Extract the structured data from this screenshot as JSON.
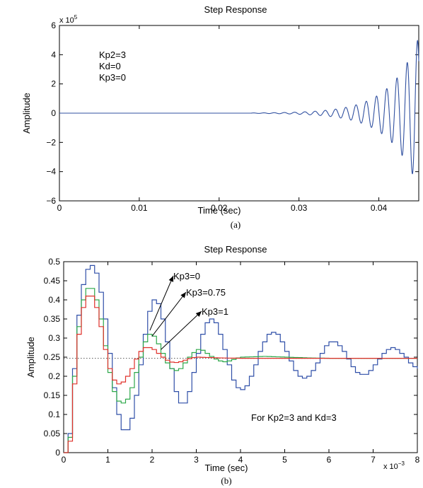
{
  "chart_data": [
    {
      "panel_label": "(a)",
      "type": "line",
      "title": "Step Response",
      "xlabel": "Time (sec)",
      "ylabel": "Amplitude",
      "y_multiplier": {
        "base": "x 10",
        "exponent": "5"
      },
      "xlim": [
        0,
        0.045
      ],
      "ylim": [
        -6,
        6
      ],
      "xticks": [
        0,
        0.01,
        0.02,
        0.03,
        0.04
      ],
      "xtick_labels": [
        "0",
        "0.01",
        "0.02",
        "0.03",
        "0.04"
      ],
      "yticks": [
        -6,
        -4,
        -2,
        0,
        2,
        4,
        6
      ],
      "ytick_labels": [
        "−6",
        "−4",
        "−2",
        "0",
        "2",
        "4",
        "6"
      ],
      "annotation_lines": [
        "Kp2=3",
        "Kd=0",
        "Kp3=0"
      ],
      "series_color": "#3050a0",
      "oscillation": {
        "onset": 0.024,
        "frequency_hz": 780,
        "growth_rate": 282,
        "end_value": 5.2
      },
      "grid": false
    },
    {
      "panel_label": "(b)",
      "type": "line",
      "title": "Step Response",
      "xlabel": "Time (sec)",
      "ylabel": "Amplitude",
      "x_multiplier": {
        "base": "x 10",
        "exponent": "−3"
      },
      "xlim": [
        0,
        8
      ],
      "ylim": [
        0,
        0.5
      ],
      "xticks": [
        0,
        1,
        2,
        3,
        4,
        5,
        6,
        7,
        8
      ],
      "xtick_labels": [
        "0",
        "1",
        "2",
        "3",
        "4",
        "5",
        "6",
        "7",
        "8"
      ],
      "yticks": [
        0,
        0.05,
        0.1,
        0.15,
        0.2,
        0.25,
        0.3,
        0.35,
        0.4,
        0.45,
        0.5
      ],
      "ytick_labels": [
        "0",
        "0.05",
        "0.1",
        "0.15",
        "0.2",
        "0.25",
        "0.3",
        "0.35",
        "0.4",
        "0.45",
        "0.5"
      ],
      "steady_state": 0.247,
      "step_interval": 0.1,
      "series": [
        {
          "annotation": "Kp3=0",
          "color": "#2f4fa8",
          "x_tip": 1.95,
          "y_tip": 0.32,
          "x": [
            0,
            0.1,
            0.2,
            0.3,
            0.4,
            0.5,
            0.6,
            0.7,
            0.8,
            0.9,
            1.0,
            1.1,
            1.2,
            1.3,
            1.4,
            1.5,
            1.6,
            1.7,
            1.8,
            1.9,
            2.0,
            2.1,
            2.2,
            2.3,
            2.4,
            2.5,
            2.6,
            2.7,
            2.8,
            2.9,
            3.0,
            3.1,
            3.2,
            3.3,
            3.4,
            3.5,
            3.6,
            3.7,
            3.8,
            3.9,
            4.0,
            4.1,
            4.2,
            4.3,
            4.4,
            4.5,
            4.6,
            4.7,
            4.8,
            4.9,
            5.0,
            5.1,
            5.2,
            5.3,
            5.4,
            5.5,
            5.6,
            5.7,
            5.8,
            5.9,
            6.0,
            6.1,
            6.2,
            6.3,
            6.4,
            6.5,
            6.6,
            6.7,
            6.8,
            6.9,
            7.0,
            7.1,
            7.2,
            7.3,
            7.4,
            7.5,
            7.6,
            7.7,
            7.8,
            7.9,
            8.0
          ],
          "values": [
            0,
            0.05,
            0.22,
            0.36,
            0.44,
            0.48,
            0.49,
            0.47,
            0.42,
            0.35,
            0.26,
            0.17,
            0.1,
            0.06,
            0.06,
            0.09,
            0.15,
            0.23,
            0.31,
            0.37,
            0.4,
            0.39,
            0.35,
            0.29,
            0.22,
            0.16,
            0.13,
            0.13,
            0.16,
            0.21,
            0.26,
            0.31,
            0.34,
            0.35,
            0.34,
            0.31,
            0.27,
            0.23,
            0.19,
            0.17,
            0.165,
            0.175,
            0.2,
            0.23,
            0.265,
            0.29,
            0.31,
            0.315,
            0.31,
            0.29,
            0.265,
            0.24,
            0.215,
            0.2,
            0.195,
            0.2,
            0.215,
            0.235,
            0.26,
            0.28,
            0.29,
            0.29,
            0.28,
            0.265,
            0.245,
            0.225,
            0.21,
            0.205,
            0.205,
            0.215,
            0.23,
            0.245,
            0.26,
            0.27,
            0.275,
            0.27,
            0.26,
            0.25,
            0.235,
            0.225,
            0.22
          ]
        },
        {
          "annotation": "Kp3=0.75",
          "color": "#2da84a",
          "x_tip": 2.0,
          "y_tip": 0.305,
          "x": [
            0,
            0.1,
            0.2,
            0.3,
            0.4,
            0.5,
            0.6,
            0.7,
            0.8,
            0.9,
            1.0,
            1.1,
            1.2,
            1.3,
            1.4,
            1.5,
            1.6,
            1.7,
            1.8,
            1.9,
            2.0,
            2.1,
            2.2,
            2.3,
            2.4,
            2.5,
            2.6,
            2.7,
            2.8,
            2.9,
            3.0,
            3.1,
            3.2,
            3.3,
            3.4,
            3.5,
            3.6,
            3.7,
            3.8,
            3.9,
            4.0,
            4.5,
            5.0,
            5.5,
            6.0,
            6.5,
            7.0,
            7.5,
            8.0
          ],
          "values": [
            0,
            0.04,
            0.2,
            0.33,
            0.4,
            0.43,
            0.43,
            0.4,
            0.35,
            0.28,
            0.21,
            0.16,
            0.135,
            0.13,
            0.14,
            0.17,
            0.21,
            0.25,
            0.29,
            0.31,
            0.305,
            0.285,
            0.26,
            0.235,
            0.22,
            0.215,
            0.22,
            0.235,
            0.25,
            0.262,
            0.27,
            0.268,
            0.26,
            0.252,
            0.245,
            0.24,
            0.238,
            0.24,
            0.244,
            0.248,
            0.25,
            0.252,
            0.25,
            0.248,
            0.247,
            0.247,
            0.247,
            0.247,
            0.247
          ]
        },
        {
          "annotation": "Kp3=1",
          "color": "#e0302a",
          "x_tip": 2.2,
          "y_tip": 0.27,
          "x": [
            0,
            0.1,
            0.2,
            0.3,
            0.4,
            0.5,
            0.6,
            0.7,
            0.8,
            0.9,
            1.0,
            1.1,
            1.2,
            1.3,
            1.4,
            1.5,
            1.6,
            1.7,
            1.8,
            1.9,
            2.0,
            2.1,
            2.2,
            2.3,
            2.4,
            2.5,
            2.6,
            2.7,
            2.8,
            2.9,
            3.0,
            3.5,
            4.0,
            4.5,
            5.0,
            5.5,
            6.0,
            6.5,
            7.0,
            7.5,
            8.0
          ],
          "values": [
            0,
            0.03,
            0.18,
            0.31,
            0.38,
            0.41,
            0.41,
            0.38,
            0.33,
            0.27,
            0.22,
            0.19,
            0.18,
            0.185,
            0.2,
            0.22,
            0.245,
            0.265,
            0.275,
            0.275,
            0.27,
            0.26,
            0.25,
            0.242,
            0.237,
            0.236,
            0.238,
            0.242,
            0.246,
            0.249,
            0.25,
            0.248,
            0.247,
            0.247,
            0.247,
            0.247,
            0.247,
            0.247,
            0.247,
            0.247,
            0.247
          ]
        }
      ],
      "corner_note": "For Kp2=3 and Kd=3",
      "grid": false
    }
  ]
}
